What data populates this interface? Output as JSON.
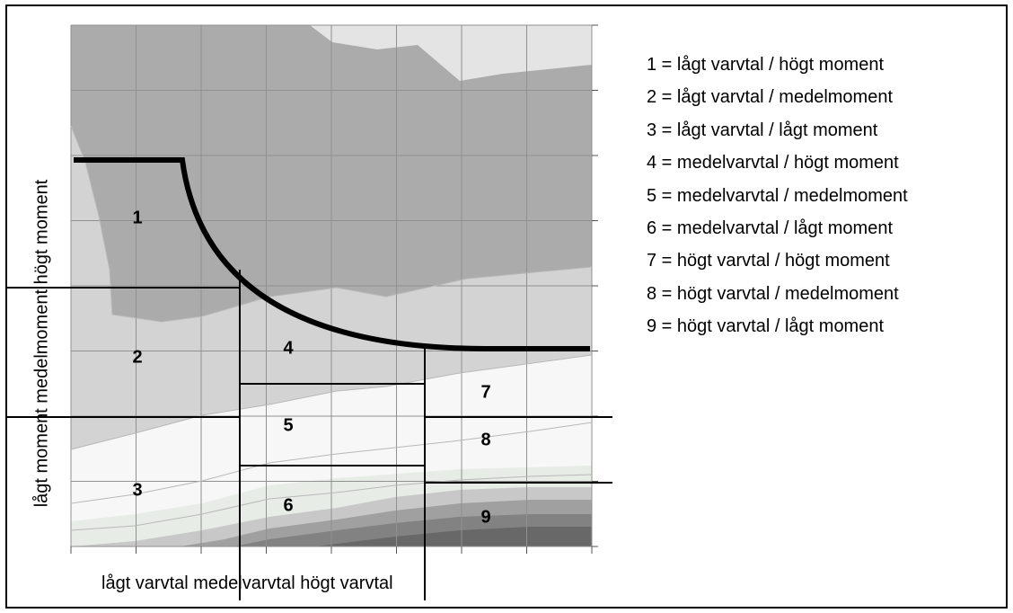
{
  "diagram": {
    "y_axis_label": "lågt moment medelmoment högt moment",
    "x_axis_label": "lågt varvtal medelvarvtal högt varvtal",
    "region_numbers": [
      "1",
      "2",
      "3",
      "4",
      "5",
      "6",
      "7",
      "8",
      "9"
    ]
  },
  "legend": [
    "1 = lågt varvtal / högt moment",
    "2 = lågt varvtal / medelmoment",
    "3 = lågt varvtal / lågt moment",
    "4 = medelvarvtal / högt moment",
    "5 = medelvarvtal / medelmoment",
    "6 = medelvarvtal / lågt moment",
    "7 = högt varvtal / högt moment",
    "8 = högt varvtal / medelmoment",
    "9 = högt varvtal / lågt moment"
  ]
}
